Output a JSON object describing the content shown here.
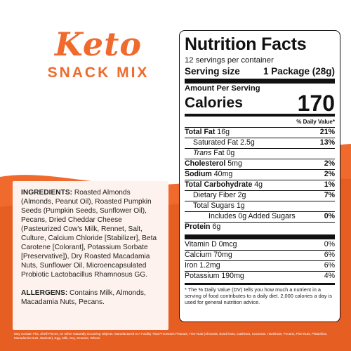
{
  "brand": {
    "logo": "Keto",
    "subtitle": "SNACK MIX"
  },
  "colors": {
    "accent": "#ef6a2c",
    "card": "#fdf2ed"
  },
  "ingredients": {
    "label": "INGREDIENTS:",
    "text": " Roasted Almonds (Almonds, Peanut Oil), Roasted Pumpkin Seeds (Pumpkin Seeds, Sunflower Oil), Pecans, Dried Cheddar Cheese (Pasteurized Cow's Milk, Rennet, Salt, Culture, Calcium Chloride [Stabilizer], Beta Carotene [Colorant], Potassium Sorbate [Preservative]), Dry Roasted Macadamia Nuts, Sunflower Oil, Microencapsulated Probiotic Lactobacillus Rhamnosus GG."
  },
  "allergens": {
    "label": "ALLERGENS:",
    "text": " Contains Milk, Almonds, Macadamia Nuts, Pecans."
  },
  "fine_print": "May Contain Pits, Shell Pieces, Or Other Naturally Occurring Objects. Manufactured In A Facility That Processes Peanuts, Tree Nuts (Almonds, Brazil Nuts, Cashews, Coconuts, Hazelnuts, Pecans, Pine Nuts, Pistachios, Macadamia Nuts, Walnuts), Egg, Milk, Soy, Sesame, Wheat.",
  "nutrition": {
    "title": "Nutrition Facts",
    "servings": "12 servings per container",
    "serving_size_label": "Serving size",
    "serving_size_value": "1 Package (28g)",
    "amount_per_serving": "Amount Per Serving",
    "calories_label": "Calories",
    "calories_value": "170",
    "dv_header": "% Daily Value*",
    "total_fat": {
      "label": "Total Fat",
      "amount": " 16g",
      "dv": "21%"
    },
    "saturated_fat": {
      "label": "Saturated Fat 2.5g",
      "dv": "13%"
    },
    "trans_fat": {
      "label": "Trans",
      "amount": " Fat 0g"
    },
    "cholesterol": {
      "label": "Cholesterol",
      "amount": " 5mg",
      "dv": "2%"
    },
    "sodium": {
      "label": "Sodium",
      "amount": " 40mg",
      "dv": "2%"
    },
    "total_carb": {
      "label": "Total Carbohydrate",
      "amount": " 4g",
      "dv": "1%"
    },
    "fiber": {
      "label": "Dietary Fiber 2g",
      "dv": "7%"
    },
    "total_sugars": {
      "label": "Total Sugars 1g"
    },
    "added_sugars": {
      "label": "Includes 0g Added Sugars",
      "dv": "0%"
    },
    "protein": {
      "label": "Protein",
      "amount": " 6g"
    },
    "vitamin_d": {
      "label": "Vitamin D 0mcg",
      "dv": "0%"
    },
    "calcium": {
      "label": "Calcium 70mg",
      "dv": "6%"
    },
    "iron": {
      "label": "Iron 1.2mg",
      "dv": "6%"
    },
    "potassium": {
      "label": "Potassium 190mg",
      "dv": "4%"
    },
    "footnote": "* The % Daily Value (DV) tells you how much a nutrient in a serving of food contributes to a daily diet. 2,000 calories a day is used for general nutrition advice."
  }
}
